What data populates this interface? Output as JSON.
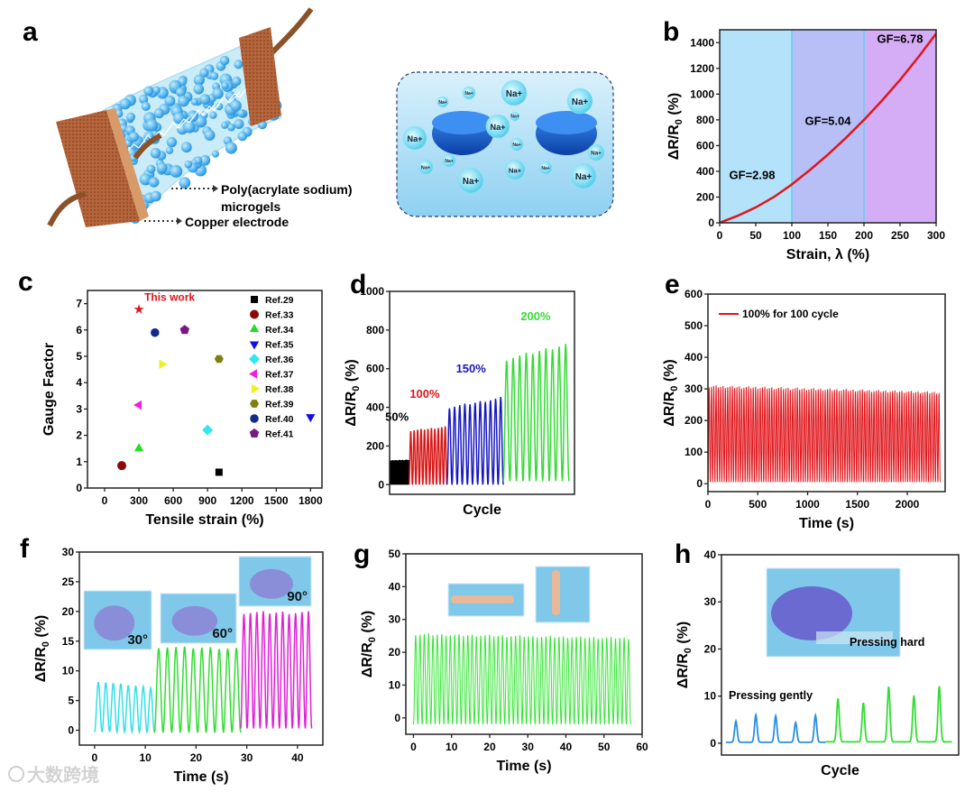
{
  "panel_letters": [
    "a",
    "b",
    "c",
    "d",
    "e",
    "f",
    "g",
    "h"
  ],
  "illustration": {
    "label_microgels_line1": "Poly(acrylate sodium)",
    "label_microgels_line2": "microgels",
    "label_electrode": "Copper electrode",
    "ion_label": "Na+",
    "colors": {
      "copper": "#b5653b",
      "gel": "#bfe9f7",
      "sphere": "#2aa7e6",
      "disc": "#1f6fd6"
    }
  },
  "watermark": "大数跨境",
  "chart_data": [
    {
      "id": "b",
      "type": "line",
      "xlabel": "Strain, λ (%)",
      "ylabel": {
        "main": "ΔR/R",
        "sub": "0",
        "tail": " (%)"
      },
      "xlim": [
        0,
        300
      ],
      "ylim": [
        0,
        1500
      ],
      "xticks": [
        0,
        50,
        100,
        150,
        200,
        250,
        300
      ],
      "yticks": [
        0,
        200,
        400,
        600,
        800,
        1000,
        1200,
        1400
      ],
      "regions": [
        {
          "range": [
            0,
            100
          ],
          "color": "#b4e2fa",
          "label": "GF=2.98",
          "label_at": [
            45,
            340
          ]
        },
        {
          "range": [
            100,
            200
          ],
          "color": "#b8bff6",
          "label": "GF=5.04",
          "label_at": [
            150,
            760
          ]
        },
        {
          "range": [
            200,
            300
          ],
          "color": "#d5acf6",
          "label": "GF=6.78",
          "label_at": [
            250,
            1400
          ]
        }
      ],
      "series": [
        {
          "name": "response",
          "color": "#e0151b",
          "x": [
            0,
            25,
            50,
            75,
            100,
            125,
            150,
            175,
            200,
            225,
            250,
            275,
            300
          ],
          "y": [
            0,
            55,
            120,
            200,
            298,
            410,
            530,
            660,
            800,
            950,
            1110,
            1285,
            1470
          ]
        }
      ]
    },
    {
      "id": "c",
      "type": "scatter",
      "xlabel": "Tensile strain (%)",
      "ylabel": {
        "main": "Gauge Factor",
        "sub": "",
        "tail": ""
      },
      "xlim": [
        -150,
        1900
      ],
      "ylim": [
        0,
        7.5
      ],
      "xticks": [
        0,
        300,
        600,
        900,
        1200,
        1500,
        1800
      ],
      "yticks": [
        0,
        1,
        2,
        3,
        4,
        5,
        6,
        7
      ],
      "annotation": {
        "text": "This work",
        "color": "#e0151b"
      },
      "legend_position": "top-right",
      "points": [
        {
          "name": "This work",
          "x": 300,
          "y": 6.78,
          "marker": "star",
          "color": "#e0151b",
          "in_legend": false
        },
        {
          "name": "Ref.29",
          "x": 1000,
          "y": 0.6,
          "marker": "square",
          "color": "#000000",
          "in_legend": true
        },
        {
          "name": "Ref.33",
          "x": 150,
          "y": 0.85,
          "marker": "circle",
          "color": "#8b0a0a",
          "in_legend": true
        },
        {
          "name": "Ref.34",
          "x": 300,
          "y": 1.5,
          "marker": "triangle-up",
          "color": "#22dd22",
          "in_legend": true
        },
        {
          "name": "Ref.35",
          "x": 1800,
          "y": 2.7,
          "marker": "triangle-down",
          "color": "#1010e0",
          "in_legend": true
        },
        {
          "name": "Ref.36",
          "x": 900,
          "y": 2.2,
          "marker": "diamond",
          "color": "#33e6f0",
          "in_legend": true
        },
        {
          "name": "Ref.37",
          "x": 300,
          "y": 3.15,
          "marker": "triangle-left",
          "color": "#f020e0",
          "in_legend": true
        },
        {
          "name": "Ref.38",
          "x": 500,
          "y": 4.7,
          "marker": "triangle-right",
          "color": "#f0f020",
          "in_legend": true
        },
        {
          "name": "Ref.39",
          "x": 1000,
          "y": 4.9,
          "marker": "hexagon",
          "color": "#808012",
          "in_legend": true
        },
        {
          "name": "Ref.40",
          "x": 440,
          "y": 5.9,
          "marker": "sphere",
          "color": "#142a8a",
          "in_legend": true
        },
        {
          "name": "Ref.41",
          "x": 700,
          "y": 6.0,
          "marker": "pentagon",
          "color": "#7a1a80",
          "in_legend": true
        }
      ]
    },
    {
      "id": "d",
      "type": "line",
      "xlabel": "Cycle",
      "ylabel": {
        "main": "ΔR/R",
        "sub": "0",
        "tail": " (%)"
      },
      "xlim": [
        0,
        100
      ],
      "ylim": [
        -50,
        1000
      ],
      "xticks": [],
      "yticks": [
        0,
        200,
        400,
        600,
        800,
        1000
      ],
      "segments": [
        {
          "label": "50%",
          "color": "#000000",
          "t": [
            0,
            10.5
          ],
          "cycles": 20,
          "min": 0,
          "peak": [
            125,
            128
          ],
          "label_at": [
            4,
            330
          ]
        },
        {
          "label": "100%",
          "color": "#d81818",
          "t": [
            10.5,
            31
          ],
          "cycles": 11,
          "min": 0,
          "peak": [
            280,
            298
          ],
          "label_at": [
            19,
            450
          ]
        },
        {
          "label": "150%",
          "color": "#1818c0",
          "t": [
            31,
            61.5
          ],
          "cycles": 11,
          "min": 0,
          "peak": [
            400,
            448
          ],
          "label_at": [
            44,
            580
          ]
        },
        {
          "label": "200%",
          "color": "#33dd33",
          "t": [
            61.5,
            97
          ],
          "cycles": 10,
          "min": 18,
          "peak": [
            650,
            725
          ],
          "label_at": [
            79,
            850
          ]
        }
      ]
    },
    {
      "id": "e",
      "type": "line",
      "xlabel": "Time (s)",
      "ylabel": {
        "main": "ΔR/R",
        "sub": "0",
        "tail": " (%)"
      },
      "xlim": [
        0,
        2380
      ],
      "ylim": [
        -25,
        600
      ],
      "xticks": [
        0,
        500,
        1000,
        1500,
        2000
      ],
      "yticks": [
        0,
        100,
        200,
        300,
        400,
        500,
        600
      ],
      "legend": {
        "label": "100% for 100 cycle",
        "color": "#e0151b",
        "position": "top-left"
      },
      "segments": [
        {
          "label": "",
          "color": "#e0151b",
          "t": [
            0,
            2330
          ],
          "cycles": 100,
          "min": 5,
          "peak": [
            308,
            288
          ]
        }
      ]
    },
    {
      "id": "f",
      "type": "line",
      "xlabel": "Time (s)",
      "ylabel": {
        "main": "ΔR/R",
        "sub": "0",
        "tail": " (%)"
      },
      "xlim": [
        -3,
        45
      ],
      "ylim": [
        -2.5,
        30
      ],
      "xticks": [
        0,
        10,
        20,
        30,
        40
      ],
      "yticks": [
        0,
        5,
        10,
        15,
        20,
        25,
        30
      ],
      "segments": [
        {
          "label": "30°",
          "color": "#33e0e8",
          "t": [
            0,
            11.8
          ],
          "cycles": 8,
          "min": -0.3,
          "peak": [
            8.2,
            7.2
          ]
        },
        {
          "label": "60°",
          "color": "#33dd33",
          "t": [
            11.8,
            28.8
          ],
          "cycles": 10,
          "min": -0.4,
          "peak": [
            14,
            13.8
          ]
        },
        {
          "label": "90°",
          "color": "#e020d8",
          "t": [
            28.8,
            42.8
          ],
          "cycles": 11,
          "min": 0.3,
          "peak": [
            19.8,
            19.8
          ]
        }
      ]
    },
    {
      "id": "g",
      "type": "line",
      "xlabel": "Time (s)",
      "ylabel": {
        "main": "ΔR/R",
        "sub": "0",
        "tail": " (%)"
      },
      "xlim": [
        -2,
        60
      ],
      "ylim": [
        -5,
        50
      ],
      "xticks": [
        0,
        10,
        20,
        30,
        40,
        50,
        60
      ],
      "yticks": [
        0,
        10,
        20,
        30,
        40,
        50
      ],
      "segments": [
        {
          "label": "",
          "color": "#33e633",
          "t": [
            0,
            57
          ],
          "cycles": 50,
          "min": -2,
          "peak": [
            25.5,
            24.3
          ]
        }
      ]
    },
    {
      "id": "h",
      "type": "line",
      "xlabel": "Cycle",
      "ylabel": {
        "main": "ΔR/R",
        "sub": "0",
        "tail": " (%)"
      },
      "xlim": [
        0,
        10.5
      ],
      "ylim": [
        -2.5,
        40
      ],
      "xticks": [],
      "yticks": [
        0,
        10,
        20,
        30,
        40
      ],
      "pulse_groups": [
        {
          "label": "Pressing gently",
          "color": "#2a8ee0",
          "t": [
            0.2,
            4.6
          ],
          "base": 0.2,
          "peaks": [
            4.5,
            5.8,
            5.6,
            4.2,
            5.7
          ]
        },
        {
          "label": "Pressing hard",
          "color": "#33dd33",
          "t": [
            4.6,
            10.2
          ],
          "base": 0.3,
          "peaks": [
            9.2,
            8.3,
            11.7,
            9.8,
            11.8
          ]
        }
      ]
    }
  ]
}
